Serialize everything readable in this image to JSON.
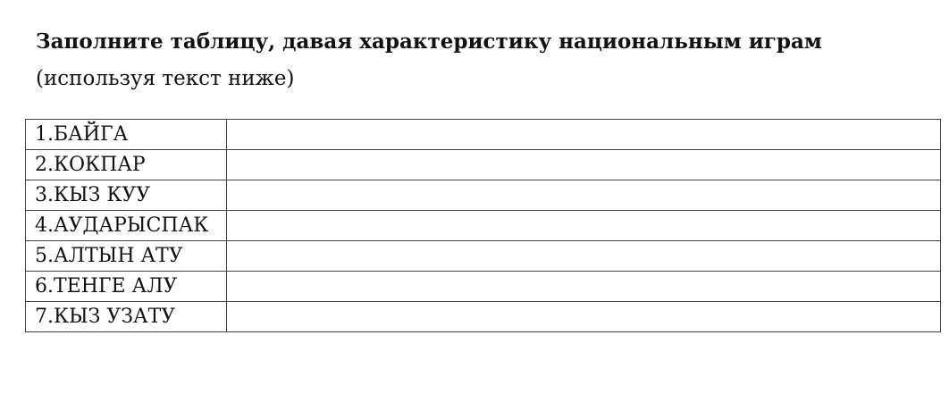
{
  "title": "Заполните таблицу, давая характеристику национальным играм",
  "subtitle": "(используя текст ниже)",
  "rows": [
    {
      "name": "1.БАЙГА",
      "value": ""
    },
    {
      "name": "2.КОКПАР",
      "value": ""
    },
    {
      "name": "3.КЫЗ КУУ",
      "value": ""
    },
    {
      "name": "4.АУДАРЫСПАК",
      "value": ""
    },
    {
      "name": "5.АЛТЫН АТУ",
      "value": ""
    },
    {
      "name": "6.ТЕНГЕ АЛУ",
      "value": ""
    },
    {
      "name": "7.КЫЗ УЗАТУ",
      "value": ""
    }
  ]
}
